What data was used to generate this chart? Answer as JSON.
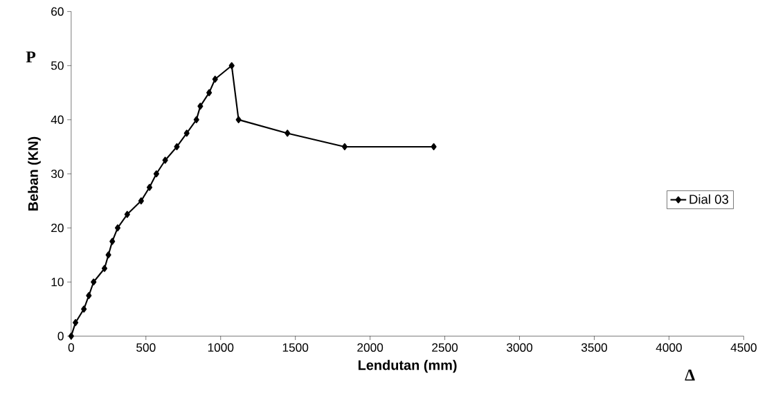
{
  "chart_data": {
    "type": "line",
    "xlabel": "Lendutan (mm)",
    "ylabel": "Beban (KN)",
    "annotations": [
      "P",
      "Δ"
    ],
    "series": [
      {
        "name": "Dial 03",
        "color": "#000000",
        "x": [
          0,
          29,
          85,
          118,
          150,
          223,
          249,
          275,
          311,
          375,
          468,
          524,
          570,
          629,
          707,
          773,
          838,
          864,
          923,
          963,
          1074,
          1120,
          1447,
          1830,
          2426
        ],
        "values": [
          0,
          2.5,
          5,
          7.5,
          10,
          12.5,
          15,
          17.5,
          20,
          22.5,
          25,
          27.5,
          30,
          32.5,
          35,
          37.5,
          40,
          42.5,
          45,
          47.5,
          50,
          40,
          37.5,
          35,
          35
        ]
      }
    ],
    "xlim": [
      0,
      4500
    ],
    "xticks": [
      0,
      500,
      1000,
      1500,
      2000,
      2500,
      3000,
      3500,
      4000,
      4500
    ],
    "ylim": [
      0,
      60
    ],
    "yticks": [
      0,
      10,
      20,
      30,
      40,
      50,
      60
    ],
    "legend": "right",
    "marker": "diamond",
    "line_style": "solid",
    "grid": false
  }
}
